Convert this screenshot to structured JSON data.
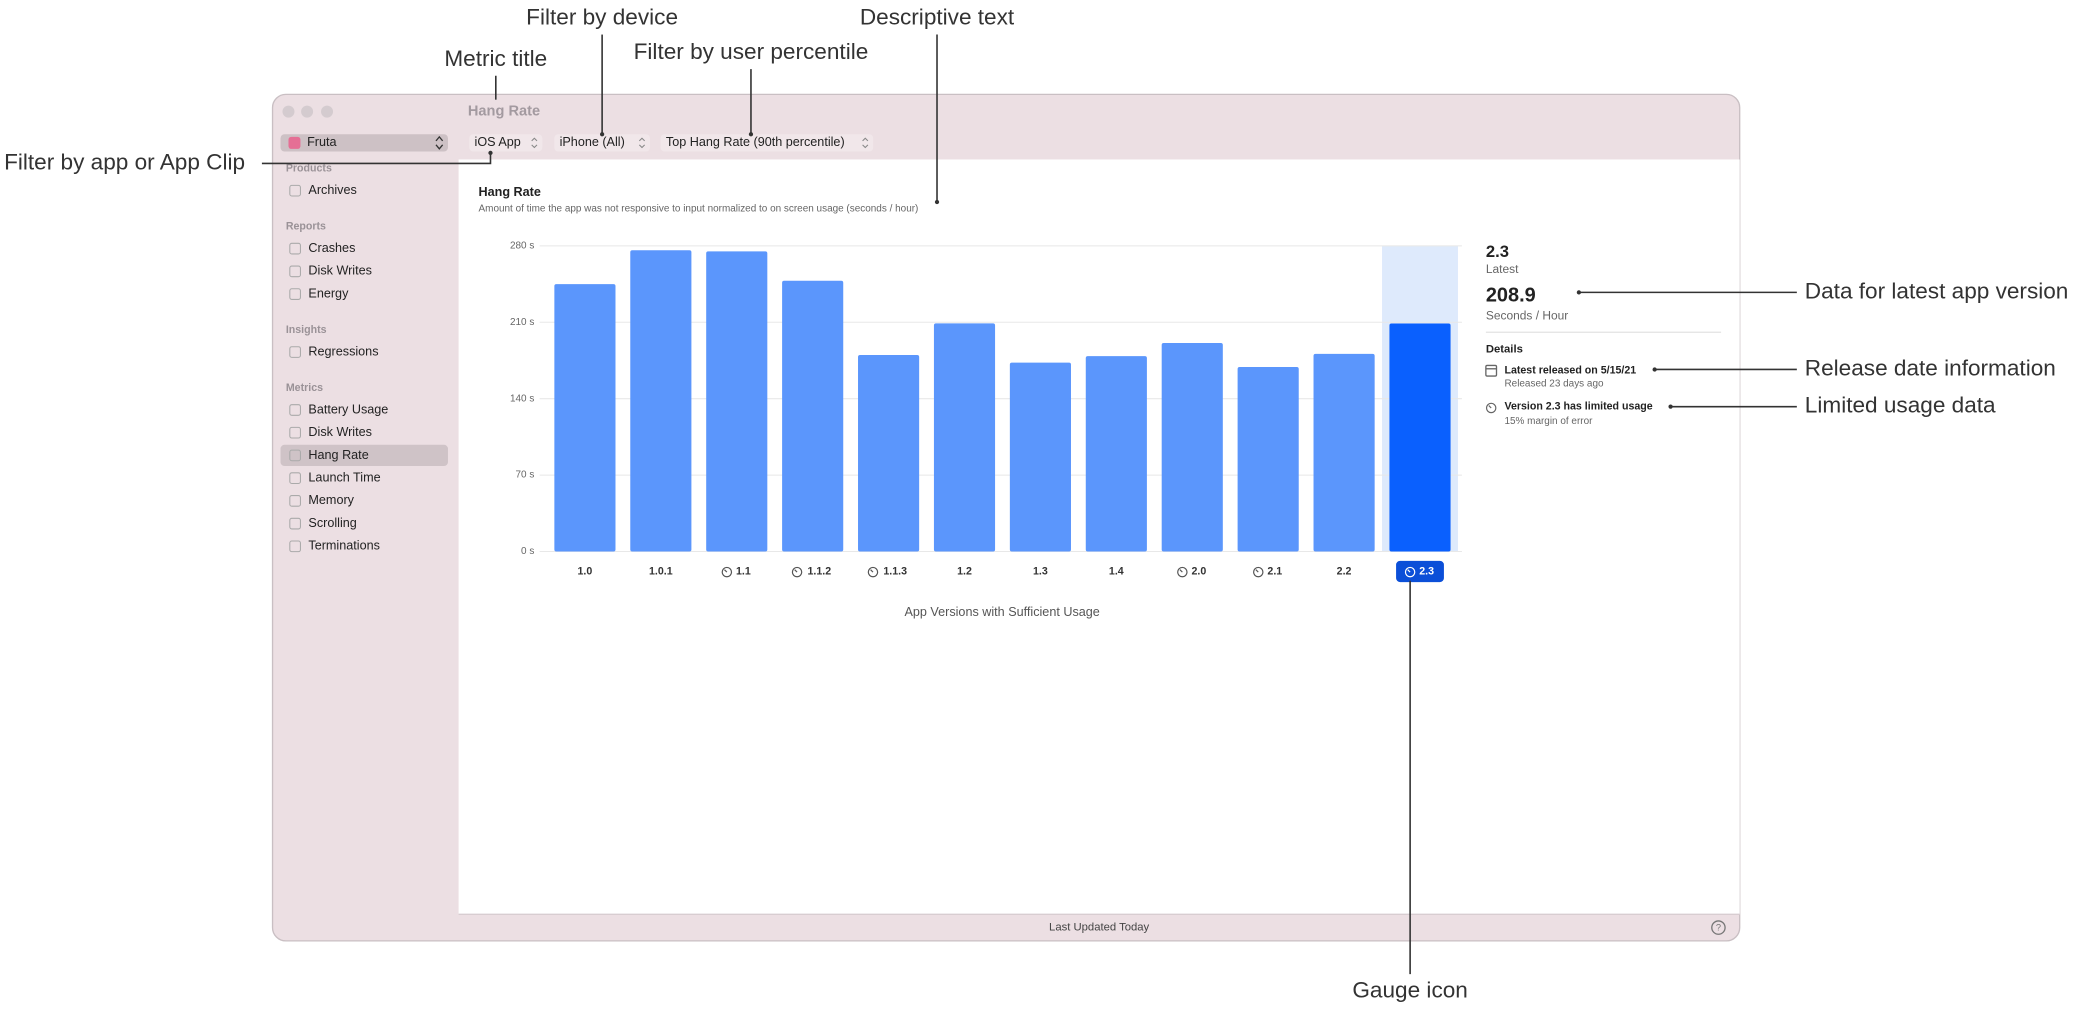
{
  "window": {
    "title": "Hang Rate",
    "app_picker": "Fruta",
    "filters": [
      "iOS App",
      "iPhone (All)",
      "Top Hang Rate (90th percentile)"
    ],
    "footer": "Last Updated Today"
  },
  "sidebar": {
    "sections": [
      {
        "title": "Products",
        "items": [
          "Archives"
        ]
      },
      {
        "title": "Reports",
        "items": [
          "Crashes",
          "Disk Writes",
          "Energy"
        ]
      },
      {
        "title": "Insights",
        "items": [
          "Regressions"
        ]
      },
      {
        "title": "Metrics",
        "items": [
          "Battery Usage",
          "Disk Writes",
          "Hang Rate",
          "Launch Time",
          "Memory",
          "Scrolling",
          "Terminations"
        ]
      }
    ],
    "selected_section": 3,
    "selected_item": 2
  },
  "chart_data": {
    "type": "bar",
    "title": "Hang Rate",
    "subtitle": "Amount of time the app was not responsive to input normalized to on screen usage (seconds / hour)",
    "x_label": "App Versions with Sufficient Usage",
    "categories": [
      "1.0",
      "1.0.1",
      "1.1",
      "1.1.2",
      "1.1.3",
      "1.2",
      "1.3",
      "1.4",
      "2.0",
      "2.1",
      "2.2",
      "2.3"
    ],
    "values": [
      245,
      276,
      275,
      248,
      180,
      209,
      173,
      179,
      191,
      169,
      181,
      208.9
    ],
    "limited_usage": [
      false,
      false,
      true,
      true,
      true,
      false,
      false,
      false,
      true,
      true,
      false,
      true
    ],
    "selected_index": 11,
    "color": "#5b96fc",
    "selected_color": "#0a60fe",
    "selected_band_color": "#deeafc",
    "ylim": [
      0,
      280
    ],
    "yticks": [
      {
        "value": 0,
        "label": "0 s"
      },
      {
        "value": 70,
        "label": "70 s"
      },
      {
        "value": 140,
        "label": "140 s"
      },
      {
        "value": 210,
        "label": "210 s"
      },
      {
        "value": 280,
        "label": "280 s"
      }
    ],
    "grid": true
  },
  "details_panel": {
    "latest_label": "Latest",
    "unit_label": "Seconds / Hour",
    "heading": "Details",
    "items": [
      {
        "title": "Latest released on 5/15/21",
        "subtitle": "Released 23 days ago"
      },
      {
        "title": "Version 2.3 has limited usage",
        "subtitle": "15% margin of error"
      }
    ]
  },
  "annotations": [
    "Metric title",
    "Filter by device",
    "Filter by user percentile",
    "Descriptive text",
    "Filter by app or App Clip",
    "Data for latest app version",
    "Release date information",
    "Limited usage data",
    "Gauge icon"
  ]
}
